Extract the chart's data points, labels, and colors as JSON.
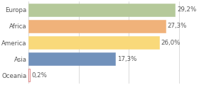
{
  "categories": [
    "Europa",
    "Africa",
    "America",
    "Asia",
    "Oceania"
  ],
  "values": [
    29.2,
    27.3,
    26.0,
    17.3,
    0.2
  ],
  "labels": [
    "29,2%",
    "27,3%",
    "26,0%",
    "17,3%",
    "0,2%"
  ],
  "bar_colors": [
    "#b5c99a",
    "#f0b27a",
    "#f9d97a",
    "#7191bb",
    "#ffffff"
  ],
  "bar_edge_colors": [
    "#b5c99a",
    "#f0b27a",
    "#f9d97a",
    "#7191bb",
    "#cc3333"
  ],
  "background_color": "#ffffff",
  "xlim": [
    0,
    33
  ],
  "text_color": "#555555",
  "label_fontsize": 6.2,
  "value_fontsize": 6.2,
  "bar_height": 0.78
}
